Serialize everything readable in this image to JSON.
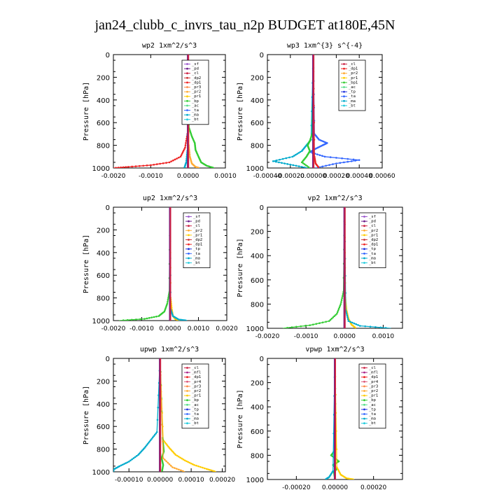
{
  "page_title": "jan24_clubb_c_invrs_tau_n2p  BUDGET at180E,45N",
  "colors": {
    "sf": "#9955cc",
    "pd": "#6a1b8a",
    "cl": "#cc2244",
    "dp1": "#ee2222",
    "dp2": "#cc3333",
    "pr1": "#ffcc00",
    "pr2": "#ffaa33",
    "pr3": "#ff8844",
    "pr4": "#dd5577",
    "mfl": "#aa2288",
    "bp": "#33cc33",
    "ac": "#55dd88",
    "tp": "#2233dd",
    "ta": "#3366ff",
    "ma": "#00aacc",
    "bt": "#22ccdd"
  },
  "chart_data": [
    {
      "type": "line",
      "title": "wp2",
      "units": "1xm^2/s^3",
      "ylabel": "Pressure [hPa]",
      "ylim": [
        1000,
        0
      ],
      "xlim": [
        -0.002,
        0.001
      ],
      "xticks": [
        "-0.0020",
        "-0.0010",
        "0.0000",
        "0.0010"
      ],
      "xtick_values": [
        -0.002,
        -0.001,
        0.0,
        0.001
      ],
      "yticks": [
        "0",
        "200",
        "400",
        "600",
        "800",
        "1000"
      ],
      "legend": [
        "_sf",
        "_pd",
        "_cl",
        "_dp2",
        "_dp1",
        "_pr3",
        "_pr2",
        "_pr1",
        "_bp",
        "_ac",
        "_ta",
        "_ma",
        "_bt"
      ],
      "series": [
        {
          "name": "_dp1",
          "color_key": "dp1",
          "p": [
            0,
            700,
            820,
            900,
            950,
            975,
            990,
            1000
          ],
          "v": [
            0,
            -2e-05,
            -8e-05,
            -0.0002,
            -0.0005,
            -0.001,
            -0.0016,
            -0.002
          ]
        },
        {
          "name": "_bp",
          "color_key": "bp",
          "p": [
            0,
            650,
            720,
            780,
            840,
            900,
            950,
            980,
            1000
          ],
          "v": [
            0,
            3e-05,
            0.0001,
            0.00018,
            0.0002,
            0.00028,
            0.00035,
            0.0005,
            0.0007
          ]
        },
        {
          "name": "_pr2",
          "color_key": "pr2",
          "p": [
            0,
            800,
            900,
            960,
            990,
            1000
          ],
          "v": [
            0,
            2e-05,
            5e-05,
            0.0001,
            0.0002,
            0.0003
          ]
        },
        {
          "name": "_ma",
          "color_key": "ma",
          "p": [
            0,
            850,
            950,
            1000
          ],
          "v": [
            0,
            -2e-05,
            -5e-05,
            -0.0001
          ]
        },
        {
          "name": "_sf",
          "color_key": "sf",
          "p": [
            0,
            1000
          ],
          "v": [
            0,
            0
          ]
        },
        {
          "name": "_pd",
          "color_key": "pd",
          "p": [
            0,
            1000
          ],
          "v": [
            0,
            0
          ]
        }
      ]
    },
    {
      "type": "line",
      "title": "wp3",
      "units": "1xm^{3} s^{-4}",
      "ylabel": "Pressure [hPa]",
      "ylim": [
        1000,
        0
      ],
      "xlim": [
        -0.0004,
        0.0006
      ],
      "xticks": [
        "-0.00040",
        "-0.00020",
        "0.00000",
        "0.00020",
        "0.00040",
        "0.00060"
      ],
      "xtick_values": [
        -0.0004,
        -0.0002,
        0.0,
        0.0002,
        0.0004,
        0.0006
      ],
      "yticks": [
        "0",
        "200",
        "400",
        "600",
        "800",
        "1000"
      ],
      "legend": [
        "_cl",
        "_dp1",
        "_pr2",
        "_pr1",
        "_bp1",
        "_ac",
        "_tp",
        "_ta",
        "_ma",
        "_bt"
      ],
      "series": [
        {
          "name": "_ta",
          "color_key": "ta",
          "p": [
            0,
            700,
            750,
            780,
            800,
            830,
            860,
            900,
            930,
            960,
            1000
          ],
          "v": [
            0,
            1e-05,
            5e-05,
            0.00012,
            8e-05,
            2e-05,
            -3e-05,
            0.0001,
            0.0004,
            0.0002,
            2e-05
          ]
        },
        {
          "name": "_ma",
          "color_key": "ma",
          "p": [
            0,
            750,
            800,
            850,
            900,
            940,
            970,
            1000
          ],
          "v": [
            0,
            -2e-05,
            -6e-05,
            -0.0001,
            -0.00018,
            -0.00035,
            -0.0002,
            -5e-05
          ]
        },
        {
          "name": "_bp1",
          "color_key": "bp",
          "p": [
            0,
            700,
            760,
            800,
            850,
            900,
            950,
            1000
          ],
          "v": [
            0,
            -1e-05,
            -3e-05,
            -5e-05,
            -3e-05,
            -6e-05,
            -0.0001,
            -3e-05
          ]
        },
        {
          "name": "_dp1",
          "color_key": "dp1",
          "p": [
            0,
            900,
            960,
            1000
          ],
          "v": [
            0,
            1e-05,
            2e-05,
            5e-05
          ]
        },
        {
          "name": "_cl",
          "color_key": "cl",
          "p": [
            0,
            1000
          ],
          "v": [
            0,
            0
          ]
        }
      ]
    },
    {
      "type": "line",
      "title": "up2",
      "units": "1xm^2/s^3",
      "ylabel": "Pressure [hPa]",
      "ylim": [
        1000,
        0
      ],
      "xlim": [
        -0.002,
        0.002
      ],
      "xticks": [
        "-0.0020",
        "-0.0010",
        "0.0000",
        "0.0010",
        "0.0020"
      ],
      "xtick_values": [
        -0.002,
        -0.001,
        0.0,
        0.001,
        0.002
      ],
      "yticks": [
        "0",
        "200",
        "400",
        "600",
        "800",
        "1000"
      ],
      "legend": [
        "_sf",
        "_pd",
        "_cl",
        "_pr2",
        "_pr1",
        "_dp2",
        "_dp1",
        "_tp",
        "_ta",
        "_ma",
        "_bt"
      ],
      "series": [
        {
          "name": "_dp1",
          "color_key": "bp",
          "p": [
            0,
            750,
            850,
            920,
            960,
            985,
            1000
          ],
          "v": [
            0,
            -3e-05,
            -0.0001,
            -0.0002,
            -0.0004,
            -0.0009,
            -0.0018
          ]
        },
        {
          "name": "_pr1",
          "color_key": "pr1",
          "p": [
            0,
            800,
            900,
            960,
            990,
            1000
          ],
          "v": [
            0,
            2e-05,
            6e-05,
            0.0001,
            0.0002,
            0.0004
          ]
        },
        {
          "name": "_ma",
          "color_key": "ma",
          "p": [
            0,
            900,
            960,
            990,
            1000
          ],
          "v": [
            0,
            2e-05,
            0.0001,
            0.0003,
            0.0006
          ]
        },
        {
          "name": "_cl",
          "color_key": "cl",
          "p": [
            0,
            1000
          ],
          "v": [
            0,
            0
          ]
        }
      ]
    },
    {
      "type": "line",
      "title": "vp2",
      "units": "1xm^2/s^3",
      "ylabel": "Pressure [hPa]",
      "ylim": [
        1000,
        0
      ],
      "xlim": [
        -0.002,
        0.0015
      ],
      "xticks": [
        "-0.0020",
        "-0.0010",
        "0.0000",
        "0.0010"
      ],
      "xtick_values": [
        -0.002,
        -0.001,
        0.0,
        0.001
      ],
      "yticks": [
        "0",
        "200",
        "400",
        "600",
        "800",
        "1000"
      ],
      "legend": [
        "_sf",
        "_pd",
        "_cl",
        "_pr2",
        "_pr1",
        "_dp2",
        "_dp1",
        "_tp",
        "_ta",
        "_ma",
        "_bt"
      ],
      "series": [
        {
          "name": "_dp1",
          "color_key": "bp",
          "p": [
            0,
            700,
            800,
            880,
            940,
            975,
            1000
          ],
          "v": [
            0,
            -3e-05,
            -0.0001,
            -0.0002,
            -0.0004,
            -0.0009,
            -0.0016
          ]
        },
        {
          "name": "_pr1",
          "color_key": "pr1",
          "p": [
            0,
            750,
            850,
            920,
            970,
            1000
          ],
          "v": [
            0,
            2e-05,
            5e-05,
            0.0001,
            0.00018,
            0.0003
          ]
        },
        {
          "name": "_ma",
          "color_key": "ma",
          "p": [
            0,
            850,
            940,
            980,
            1000
          ],
          "v": [
            0,
            3e-05,
            0.0001,
            0.0004,
            0.0012
          ]
        },
        {
          "name": "_cl",
          "color_key": "cl",
          "p": [
            0,
            1000
          ],
          "v": [
            0,
            0
          ]
        }
      ]
    },
    {
      "type": "line",
      "title": "upwp",
      "units": "1xm^2/s^3",
      "ylabel": "Pressure [hPa]",
      "ylim": [
        1000,
        0
      ],
      "xlim": [
        -0.00015,
        0.00021
      ],
      "xticks": [
        "-0.00010",
        "0.00000",
        "0.00010",
        "0.00020"
      ],
      "xtick_values": [
        -0.0001,
        0.0,
        0.0001,
        0.0002
      ],
      "yticks": [
        "0",
        "200",
        "400",
        "600",
        "800",
        "1000"
      ],
      "legend": [
        "_cl",
        "_mfl",
        "_dp1",
        "_pr4",
        "_pr3",
        "_pr2",
        "_pr1",
        "_bp",
        "_ac",
        "_tp",
        "_ta",
        "_ma",
        "_bt"
      ],
      "series": [
        {
          "name": "_ma",
          "color_key": "ma",
          "p": [
            0,
            650,
            720,
            790,
            850,
            910,
            950,
            980,
            1000
          ],
          "v": [
            0,
            -1e-05,
            -3e-05,
            -5e-05,
            -7e-05,
            -0.0001,
            -0.00013,
            -0.00015,
            -0.00015
          ]
        },
        {
          "name": "_pr1",
          "color_key": "pr1",
          "p": [
            0,
            720,
            790,
            850,
            900,
            940,
            975,
            1000
          ],
          "v": [
            0,
            1e-05,
            3e-05,
            5e-05,
            8e-05,
            0.00011,
            0.00015,
            0.00018
          ]
        },
        {
          "name": "_bp",
          "color_key": "bp",
          "p": [
            0,
            700,
            760,
            820,
            880,
            940,
            1000
          ],
          "v": [
            0,
            8e-06,
            1e-05,
            1.2e-05,
            5e-06,
            1e-05,
            6e-06
          ]
        },
        {
          "name": "_pr2",
          "color_key": "pr2",
          "p": [
            0,
            880,
            960,
            1000
          ],
          "v": [
            0,
            1e-05,
            4e-05,
            8e-05
          ]
        },
        {
          "name": "_cl",
          "color_key": "cl",
          "p": [
            0,
            1000
          ],
          "v": [
            0,
            0
          ]
        }
      ]
    },
    {
      "type": "line",
      "title": "vpwp",
      "units": "1xm^2/s^3",
      "ylabel": "Pressure [hPa]",
      "ylim": [
        1000,
        0
      ],
      "xlim": [
        -0.00035,
        0.00035
      ],
      "xticks": [
        "-0.00020",
        "0.00000",
        "0.00020"
      ],
      "xtick_values": [
        -0.0002,
        0.0,
        0.0002
      ],
      "yticks": [
        "0",
        "200",
        "400",
        "600",
        "800",
        "1000"
      ],
      "legend": [
        "_cl",
        "_mfl",
        "_dp1",
        "_pr4",
        "_pr3",
        "_pr2",
        "_pr1",
        "_bp",
        "_ac",
        "_tp",
        "_ta",
        "_ma",
        "_bt"
      ],
      "series": [
        {
          "name": "_bp",
          "color_key": "bp",
          "p": [
            0,
            750,
            800,
            850,
            880,
            910,
            940,
            1000
          ],
          "v": [
            0,
            5e-06,
            -2e-05,
            2e-05,
            -1e-05,
            1e-05,
            -5e-06,
            0
          ]
        },
        {
          "name": "_pr1",
          "color_key": "pr1",
          "p": [
            0,
            900,
            960,
            990,
            1000
          ],
          "v": [
            0,
            1e-05,
            3e-05,
            6e-05,
            0.0001
          ]
        },
        {
          "name": "_ma",
          "color_key": "ma",
          "p": [
            0,
            930,
            980,
            1000
          ],
          "v": [
            0,
            -1e-05,
            -3e-05,
            -5e-05
          ]
        },
        {
          "name": "_cl",
          "color_key": "cl",
          "p": [
            0,
            1000
          ],
          "v": [
            0,
            0
          ]
        }
      ]
    }
  ]
}
